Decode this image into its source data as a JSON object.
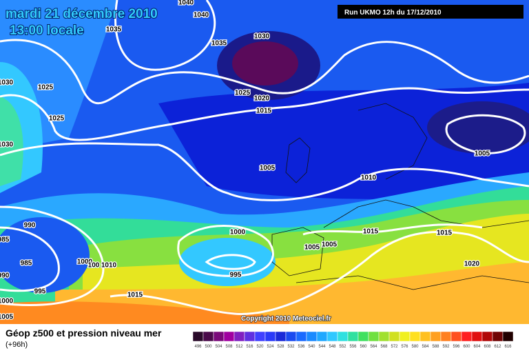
{
  "header": {
    "date": "mardi 21 décembre 2010",
    "time": "13:00 locale",
    "run": "Run UKMO 12h du 17/12/2010"
  },
  "isobar_labels": [
    1040,
    1040,
    1035,
    1035,
    1030,
    1030,
    1025,
    1025,
    1020,
    1015,
    1025,
    1030,
    1005,
    1010,
    1005,
    990,
    985,
    1000,
    1015,
    1015,
    1005,
    1005,
    985,
    1000,
    100,
    1010,
    1020,
    995,
    990,
    995,
    1015,
    1000,
    1005
  ],
  "copyright": "Copyright 2010 Meteociel.fr",
  "legend": {
    "title": "Géop z500 et pression niveau mer",
    "lead": "(+96h)",
    "scale": [
      496,
      500,
      504,
      508,
      512,
      516,
      520,
      524,
      528,
      532,
      536,
      540,
      544,
      548,
      552,
      556,
      560,
      564,
      568,
      572,
      576,
      580,
      584,
      588,
      592,
      596,
      600,
      604,
      608,
      612,
      616
    ]
  }
}
